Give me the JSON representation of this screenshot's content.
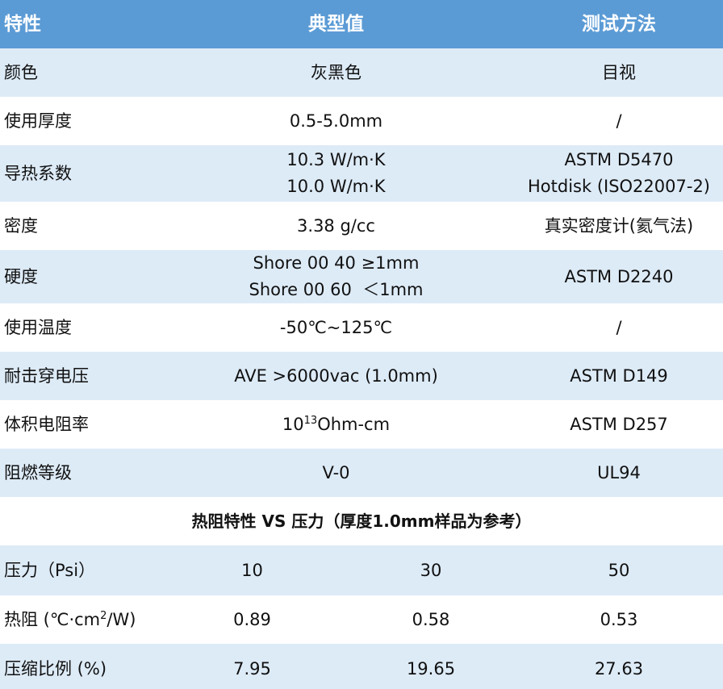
{
  "table": {
    "header": [
      "特性",
      "典型值",
      "测试方法"
    ],
    "rows": [
      [
        "颜色",
        "灰黑色",
        "目视"
      ],
      [
        "使用厚度",
        "0.5-5.0mm",
        "/"
      ],
      [
        "导热系数",
        [
          "10.3 W/m·K",
          "10.0 W/m·K"
        ],
        [
          "ASTM D5470",
          "Hotdisk (ISO22007-2)"
        ]
      ],
      [
        "密度",
        "3.38 g/cc",
        "真实密度计(氦气法)"
      ],
      [
        "硬度",
        [
          "Shore 00 40 ≥1mm",
          "Shore 00 60  ＜1mm"
        ],
        "ASTM D2240"
      ],
      [
        "使用温度",
        "-50℃~125℃",
        "/"
      ],
      [
        "耐击穿电压",
        "AVE >6000vac (1.0mm)",
        "ASTM D149"
      ],
      [
        "体积电阻率",
        {
          "text": "10",
          "sup": "13",
          "after": "Ohm-cm"
        },
        "ASTM D257"
      ],
      [
        "阻燃等级",
        "V-0",
        "UL94"
      ]
    ],
    "section_title": "热阻特性 VS 压力（厚度1.0mm样品为参考）",
    "section_rows": [
      [
        "压力（Psi）",
        10,
        30,
        50
      ],
      [
        {
          "text": "热阻 (℃·cm",
          "sup": "2",
          "after": "/W)"
        },
        0.89,
        0.58,
        0.53
      ],
      [
        "压缩比例 (%)",
        7.95,
        19.65,
        27.63
      ]
    ]
  }
}
